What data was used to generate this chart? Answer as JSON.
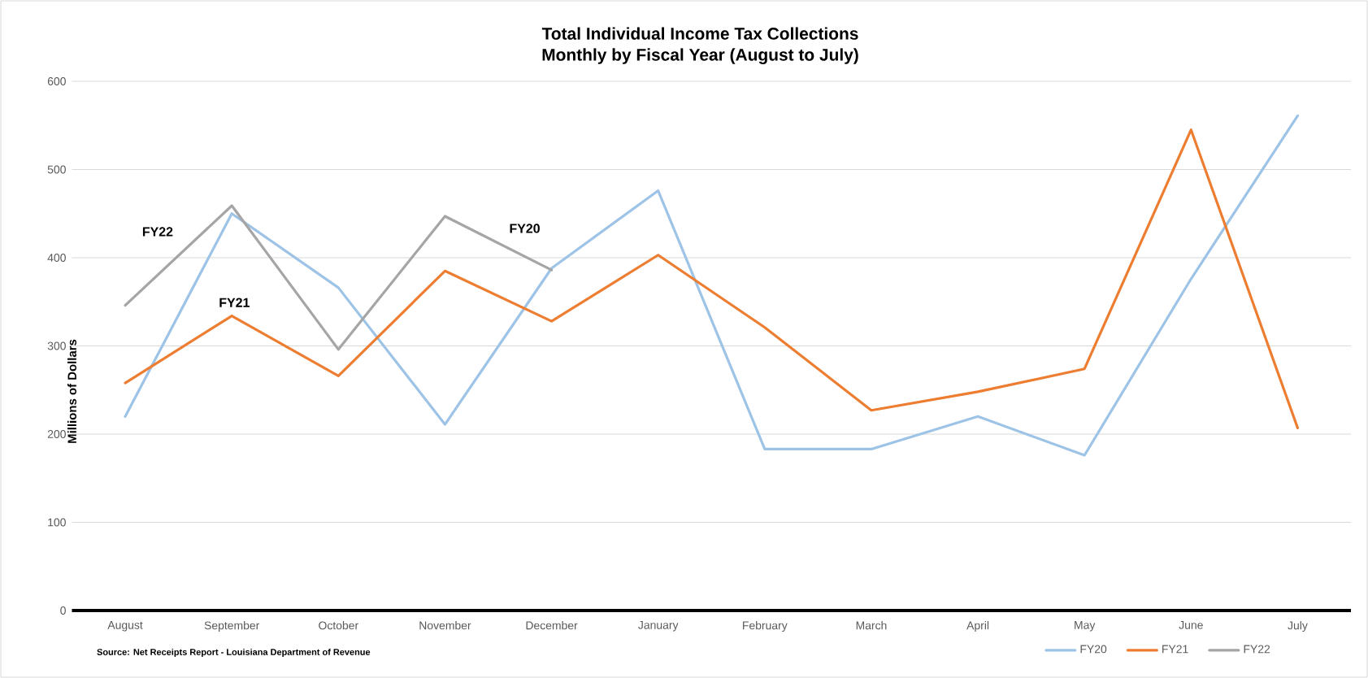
{
  "chart_data": {
    "type": "line",
    "title": "Total Individual Income Tax Collections",
    "subtitle": "Monthly by Fiscal Year (August to July)",
    "ylabel": "Millions of Dollars",
    "categories": [
      "August",
      "September",
      "October",
      "November",
      "December",
      "January",
      "February",
      "March",
      "April",
      "May",
      "June",
      "July"
    ],
    "series": [
      {
        "name": "FY20",
        "color": "#9dc3e6",
        "values": [
          220,
          450,
          366,
          211,
          388,
          476,
          183,
          183,
          220,
          176,
          376,
          561
        ]
      },
      {
        "name": "FY21",
        "color": "#ed7d31",
        "values": [
          258,
          334,
          266,
          385,
          328,
          403,
          321,
          227,
          248,
          274,
          545,
          207
        ]
      },
      {
        "name": "FY22",
        "color": "#a5a5a5",
        "values": [
          346,
          459,
          296,
          447,
          386,
          null,
          null,
          null,
          null,
          null,
          null,
          null
        ]
      }
    ],
    "ylim": [
      0,
      600
    ],
    "yticks": [
      0,
      100,
      200,
      300,
      400,
      500,
      600
    ],
    "grid": "y",
    "legend": "bottom right",
    "annotations": [
      "FY22",
      "FY21",
      "FY20",
      "Source: Net Receipts Report - Louisiana Department of Revenue"
    ]
  }
}
